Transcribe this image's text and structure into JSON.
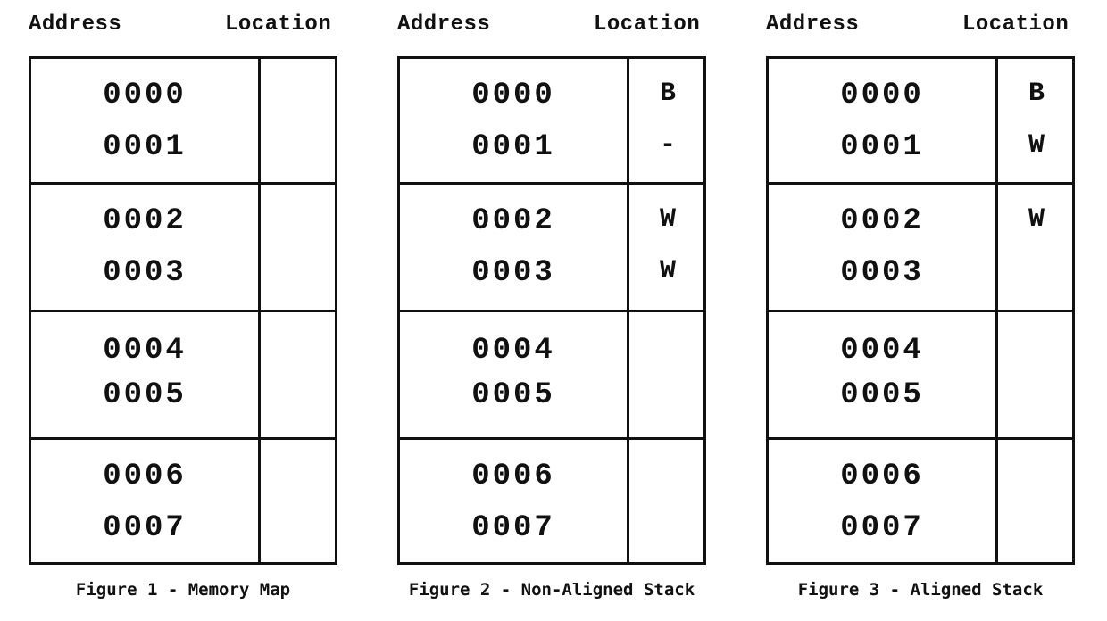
{
  "figures": [
    {
      "address_header": "Address",
      "location_header": "Location",
      "caption": "Figure 1 - Memory Map",
      "rows": [
        {
          "addr": [
            "0000",
            "0001"
          ],
          "loc": [
            "",
            ""
          ]
        },
        {
          "addr": [
            "0002",
            "0003"
          ],
          "loc": [
            "",
            ""
          ]
        },
        {
          "addr": [
            "0004",
            "0005"
          ],
          "loc": [
            "",
            ""
          ]
        },
        {
          "addr": [
            "0006",
            "0007"
          ],
          "loc": [
            "",
            ""
          ]
        }
      ]
    },
    {
      "address_header": "Address",
      "location_header": "Location",
      "caption": "Figure 2 - Non-Aligned Stack",
      "rows": [
        {
          "addr": [
            "0000",
            "0001"
          ],
          "loc": [
            "B",
            "-"
          ]
        },
        {
          "addr": [
            "0002",
            "0003"
          ],
          "loc": [
            "W",
            "W"
          ]
        },
        {
          "addr": [
            "0004",
            "0005"
          ],
          "loc": [
            "",
            ""
          ]
        },
        {
          "addr": [
            "0006",
            "0007"
          ],
          "loc": [
            "",
            ""
          ]
        }
      ]
    },
    {
      "address_header": "Address",
      "location_header": "Location",
      "caption": "Figure 3 - Aligned Stack",
      "rows": [
        {
          "addr": [
            "0000",
            "0001"
          ],
          "loc": [
            "B",
            "W"
          ]
        },
        {
          "addr": [
            "0002",
            "0003"
          ],
          "loc": [
            "W",
            ""
          ]
        },
        {
          "addr": [
            "0004",
            "0005"
          ],
          "loc": [
            "",
            ""
          ]
        },
        {
          "addr": [
            "0006",
            "0007"
          ],
          "loc": [
            "",
            ""
          ]
        }
      ]
    }
  ]
}
